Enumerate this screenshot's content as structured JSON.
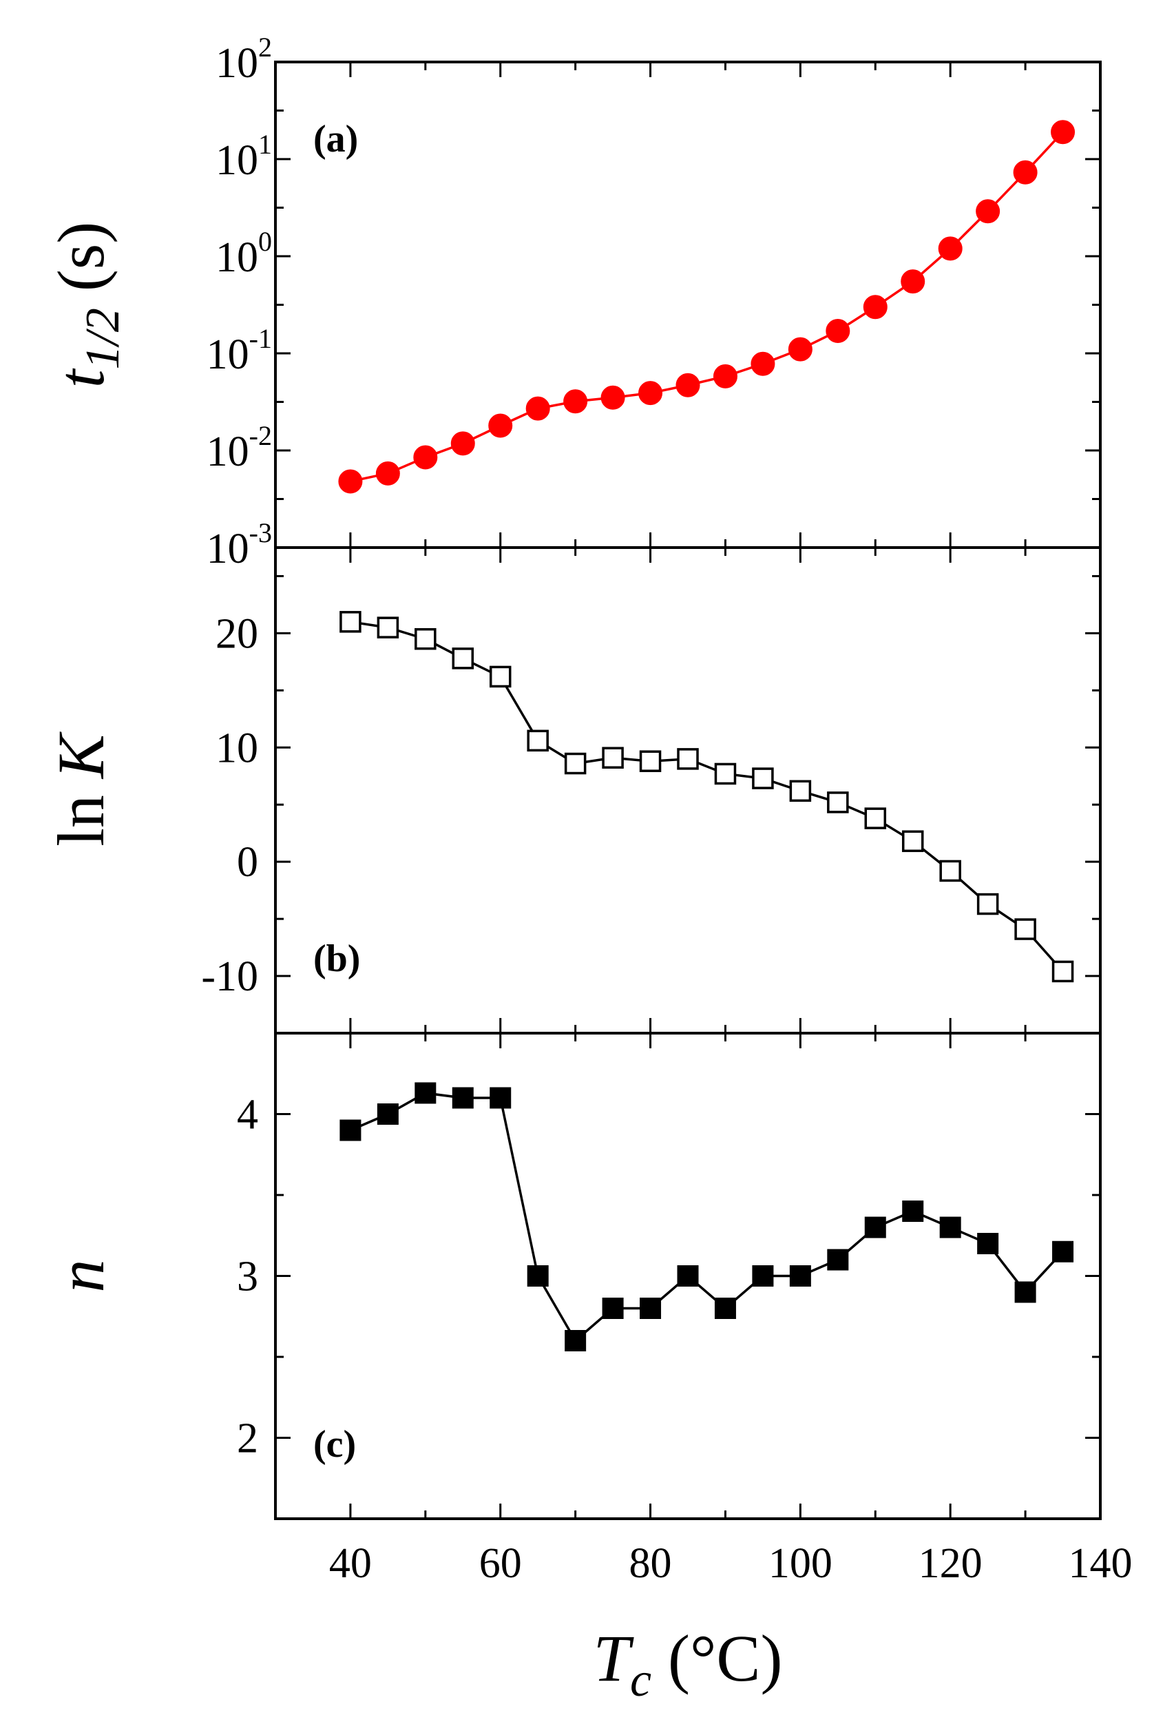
{
  "chart_data": [
    {
      "type": "line",
      "panel_label": "(a)",
      "title": "",
      "xlabel": "",
      "ylabel": {
        "symbol": "t",
        "subscript": "1/2",
        "unit": "(s)"
      },
      "yscale": "log",
      "ylim_exponents": [
        -3,
        2
      ],
      "yticks": [
        {
          "base": "10",
          "exp": "-3"
        },
        {
          "base": "10",
          "exp": "-2"
        },
        {
          "base": "10",
          "exp": "-1"
        },
        {
          "base": "10",
          "exp": "0"
        },
        {
          "base": "10",
          "exp": "1"
        },
        {
          "base": "10",
          "exp": "2"
        }
      ],
      "series": [
        {
          "name": "t1/2",
          "color": "#ff0000",
          "marker": "filled-circle",
          "x": [
            40,
            45,
            50,
            55,
            60,
            65,
            70,
            75,
            80,
            85,
            90,
            95,
            100,
            105,
            110,
            115,
            120,
            125,
            130,
            135
          ],
          "y": [
            0.0048,
            0.0058,
            0.0085,
            0.0118,
            0.018,
            0.027,
            0.032,
            0.035,
            0.039,
            0.047,
            0.058,
            0.078,
            0.11,
            0.17,
            0.3,
            0.55,
            1.2,
            2.9,
            7.3,
            19
          ]
        }
      ]
    },
    {
      "type": "line",
      "panel_label": "(b)",
      "title": "",
      "xlabel": "",
      "ylabel": {
        "prefix": "ln ",
        "symbol": "K"
      },
      "ylim": [
        -15,
        27.5
      ],
      "yticks": [
        "-10",
        "0",
        "10",
        "20"
      ],
      "series": [
        {
          "name": "ln K",
          "color": "#000000",
          "marker": "open-square",
          "x": [
            40,
            45,
            50,
            55,
            60,
            65,
            70,
            75,
            80,
            85,
            90,
            95,
            100,
            105,
            110,
            115,
            120,
            125,
            130,
            135
          ],
          "y": [
            21,
            20.5,
            19.5,
            17.8,
            16.2,
            10.6,
            8.6,
            9.1,
            8.8,
            9.0,
            7.7,
            7.3,
            6.2,
            5.2,
            3.8,
            1.8,
            -0.8,
            -3.7,
            -5.9,
            -9.6
          ]
        }
      ]
    },
    {
      "type": "line",
      "panel_label": "(c)",
      "title": "",
      "ylabel": {
        "symbol": "n"
      },
      "xlabel": {
        "symbol": "T",
        "subscript": "c",
        "unit": "(°C)"
      },
      "xlim": [
        30,
        140
      ],
      "xticks": [
        "40",
        "60",
        "80",
        "100",
        "120",
        "140"
      ],
      "ylim": [
        1.5,
        4.5
      ],
      "yticks": [
        "2",
        "3",
        "4"
      ],
      "series": [
        {
          "name": "n",
          "color": "#000000",
          "marker": "filled-square",
          "x": [
            40,
            45,
            50,
            55,
            60,
            65,
            70,
            75,
            80,
            85,
            90,
            95,
            100,
            105,
            110,
            115,
            120,
            125,
            130,
            135
          ],
          "y": [
            3.9,
            4.0,
            4.13,
            4.1,
            4.1,
            3.0,
            2.6,
            2.8,
            2.8,
            3.0,
            2.8,
            3.0,
            3.0,
            3.1,
            3.3,
            3.4,
            3.3,
            3.2,
            2.9,
            3.15
          ]
        }
      ]
    }
  ]
}
